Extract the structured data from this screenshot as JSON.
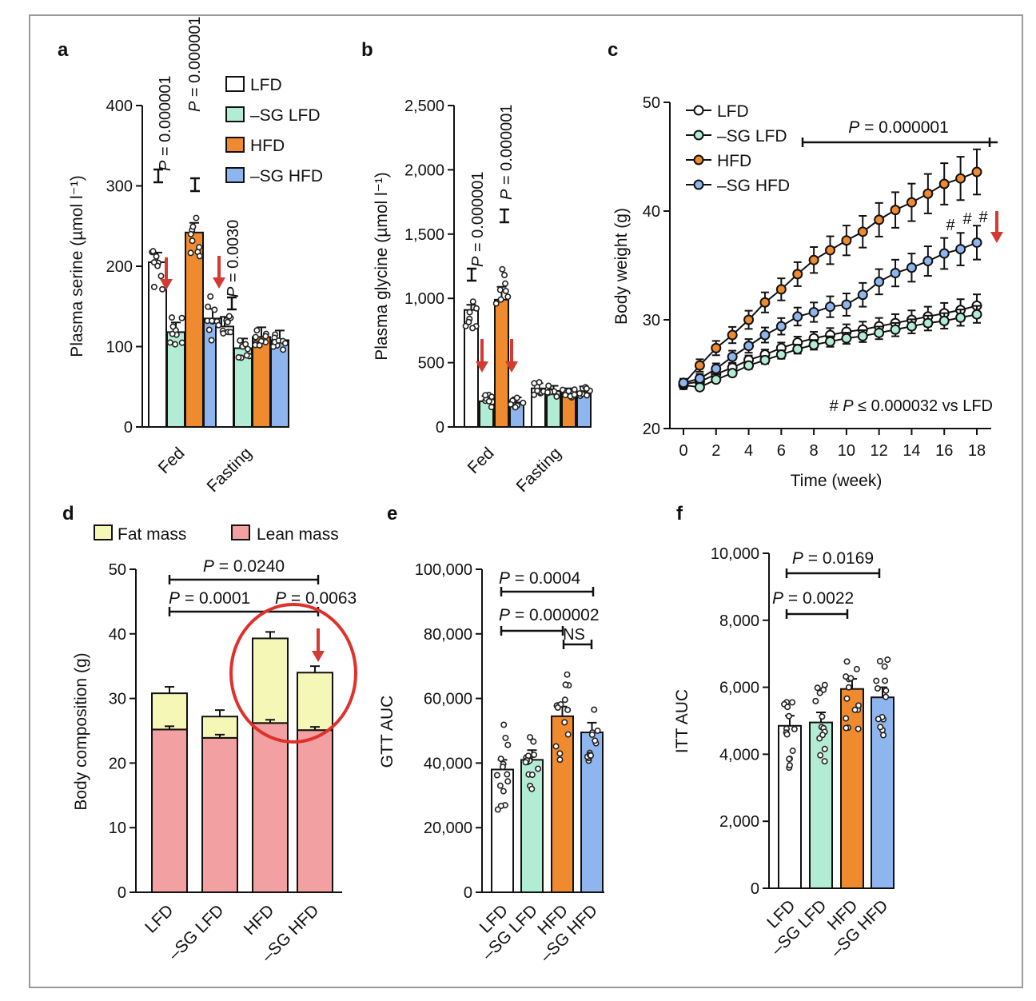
{
  "colors": {
    "LFD": "#ffffff",
    "-SG LFD": "#b3ecd4",
    "HFD": "#f08a2e",
    "-SG HFD": "#8fb5ee",
    "fat": "#f4f7b6",
    "lean": "#f2a0a2",
    "arrow": "#d23a32",
    "circle": "#e0302a"
  },
  "chart_data": [
    {
      "panel": "a",
      "type": "bar",
      "ylabel": "Plasma serine (µmol l⁻¹)",
      "ylim": [
        0,
        400
      ],
      "yticks": [
        0,
        100,
        200,
        300,
        400
      ],
      "categories": [
        "Fed",
        "Fasting"
      ],
      "legend": [
        "LFD",
        "–SG LFD",
        "HFD",
        "–SG HFD"
      ],
      "series": [
        {
          "name": "LFD",
          "values": [
            205,
            125
          ]
        },
        {
          "name": "–SG LFD",
          "values": [
            118,
            98
          ]
        },
        {
          "name": "HFD",
          "values": [
            242,
            112
          ]
        },
        {
          "name": "–SG HFD",
          "values": [
            135,
            108
          ]
        }
      ],
      "annotations": [
        "P = 0.000001",
        "P = 0.000001",
        "P = 0.0030"
      ]
    },
    {
      "panel": "b",
      "type": "bar",
      "ylabel": "Plasma glycine (µmol l⁻¹)",
      "ylim": [
        0,
        2500
      ],
      "yticks": [
        0,
        500,
        1000,
        1500,
        2000,
        2500
      ],
      "ytick_labels": [
        "0",
        "500",
        "1,000",
        "1,500",
        "2,000",
        "2,500"
      ],
      "categories": [
        "Fed",
        "Fasting"
      ],
      "series": [
        {
          "name": "LFD",
          "values": [
            910,
            300
          ]
        },
        {
          "name": "–SG LFD",
          "values": [
            200,
            280
          ]
        },
        {
          "name": "HFD",
          "values": [
            990,
            260
          ]
        },
        {
          "name": "–SG HFD",
          "values": [
            190,
            275
          ]
        }
      ],
      "annotations": [
        "P = 0.000001",
        "P = 0.000001"
      ]
    },
    {
      "panel": "c",
      "type": "line",
      "xlabel": "Time (week)",
      "ylabel": "Body weight (g)",
      "xlim": [
        0,
        18
      ],
      "ylim": [
        20,
        50
      ],
      "xticks": [
        0,
        2,
        4,
        6,
        8,
        10,
        12,
        14,
        16,
        18
      ],
      "yticks": [
        20,
        30,
        40,
        50
      ],
      "x": [
        0,
        1,
        2,
        3,
        4,
        5,
        6,
        7,
        8,
        9,
        10,
        11,
        12,
        13,
        14,
        15,
        16,
        17,
        18
      ],
      "series": [
        {
          "name": "LFD",
          "values": [
            24.1,
            24.3,
            25.0,
            25.6,
            26.3,
            26.8,
            27.4,
            27.9,
            28.3,
            28.6,
            28.9,
            29.1,
            29.4,
            29.7,
            30.0,
            30.3,
            30.6,
            30.9,
            31.3
          ]
        },
        {
          "name": "–SG LFD",
          "values": [
            24.0,
            23.8,
            24.5,
            25.1,
            25.8,
            26.3,
            26.8,
            27.3,
            27.7,
            28.0,
            28.3,
            28.5,
            28.8,
            29.1,
            29.4,
            29.7,
            29.9,
            30.2,
            30.5
          ]
        },
        {
          "name": "HFD",
          "values": [
            24.1,
            25.8,
            27.4,
            28.6,
            30.0,
            31.6,
            32.8,
            34.2,
            35.5,
            36.4,
            37.3,
            38.1,
            39.2,
            40.1,
            40.8,
            41.6,
            42.5,
            43.0,
            43.6
          ]
        },
        {
          "name": "–SG HFD",
          "values": [
            24.2,
            24.6,
            25.5,
            26.6,
            27.6,
            28.6,
            29.4,
            30.3,
            30.7,
            31.2,
            31.4,
            32.3,
            33.5,
            34.3,
            34.8,
            35.4,
            36.1,
            36.5,
            37.1
          ]
        }
      ],
      "legend": [
        "LFD",
        "–SG LFD",
        "HFD",
        "–SG HFD"
      ],
      "annotations": [
        "P = 0.000001",
        "#",
        "#",
        "#",
        "# P ≤ 0.000032 vs LFD"
      ]
    },
    {
      "panel": "d",
      "type": "bar",
      "ylabel": "Body composition (g)",
      "ylim": [
        0,
        50
      ],
      "yticks": [
        0,
        10,
        20,
        30,
        40,
        50
      ],
      "categories": [
        "LFD",
        "–SG LFD",
        "HFD",
        "–SG HFD"
      ],
      "series": [
        {
          "name": "Lean mass",
          "values": [
            25.2,
            23.9,
            26.2,
            25.1
          ]
        },
        {
          "name": "Fat mass",
          "values": [
            5.6,
            3.3,
            13.1,
            8.9
          ]
        }
      ],
      "legend": [
        "Fat mass",
        "Lean mass"
      ],
      "annotations": [
        "P = 0.0240",
        "P = 0.0001",
        "P = 0.0063"
      ]
    },
    {
      "panel": "e",
      "type": "bar",
      "ylabel": "GTT AUC",
      "ylim": [
        0,
        100000
      ],
      "yticks": [
        0,
        20000,
        40000,
        60000,
        80000,
        100000
      ],
      "ytick_labels": [
        "0",
        "20,000",
        "40,000",
        "60,000",
        "80,000",
        "100,000"
      ],
      "categories": [
        "LFD",
        "–SG LFD",
        "HFD",
        "–SG HFD"
      ],
      "values": [
        38000,
        41000,
        54500,
        49500
      ],
      "annotations": [
        "P = 0.0004",
        "P = 0.000002",
        "NS"
      ]
    },
    {
      "panel": "f",
      "type": "bar",
      "ylabel": "ITT AUC",
      "ylim": [
        0,
        10000
      ],
      "yticks": [
        0,
        2000,
        4000,
        6000,
        8000,
        10000
      ],
      "ytick_labels": [
        "0",
        "2,000",
        "4,000",
        "6,000",
        "8,000",
        "10,000"
      ],
      "categories": [
        "LFD",
        "–SG LFD",
        "HFD",
        "–SG HFD"
      ],
      "values": [
        4850,
        4950,
        5950,
        5700
      ],
      "annotations": [
        "P = 0.0169",
        "P = 0.0022"
      ]
    }
  ]
}
